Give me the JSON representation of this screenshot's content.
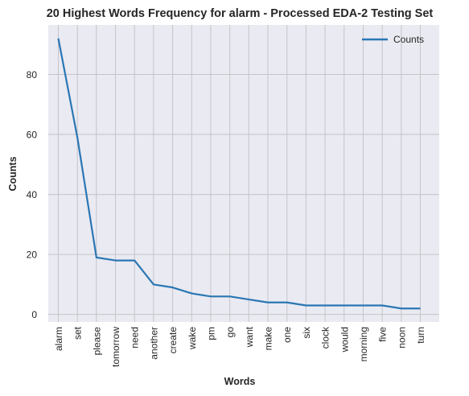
{
  "chart_data": {
    "type": "line",
    "title": "20 Highest Words Frequency for alarm - Processed EDA-2 Testing Set",
    "xlabel": "Words",
    "ylabel": "Counts",
    "categories": [
      "alarm",
      "set",
      "please",
      "tomorrow",
      "need",
      "another",
      "create",
      "wake",
      "pm",
      "go",
      "want",
      "make",
      "one",
      "six",
      "clock",
      "would",
      "morning",
      "five",
      "noon",
      "turn"
    ],
    "series": [
      {
        "name": "Counts",
        "color": "#2a77b4",
        "values": [
          92,
          59,
          19,
          18,
          18,
          10,
          9,
          7,
          6,
          6,
          5,
          4,
          4,
          3,
          3,
          3,
          3,
          3,
          2,
          2
        ]
      }
    ],
    "yticks": [
      0,
      20,
      40,
      60,
      80
    ],
    "ylim": [
      -2.5,
      96.5
    ],
    "grid": true,
    "legend": "top-right",
    "background": "#eaeaf2"
  }
}
